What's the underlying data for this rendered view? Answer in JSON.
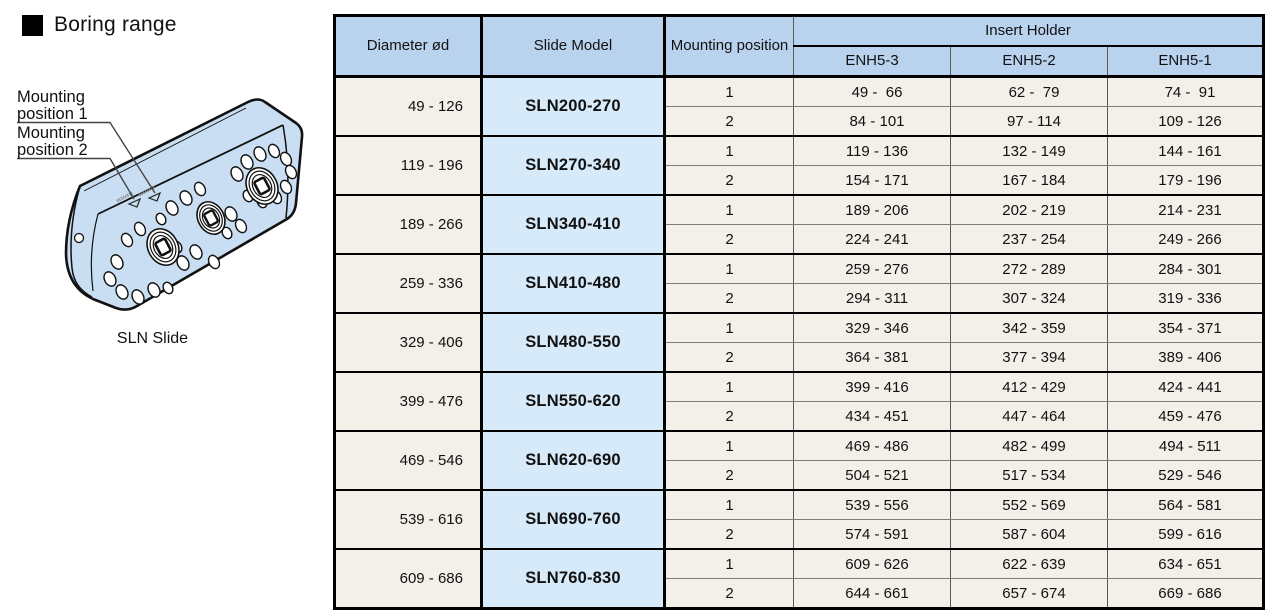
{
  "section": {
    "title": "Boring range"
  },
  "diagram": {
    "callout1": {
      "line1": "Mounting",
      "line2": "position 1"
    },
    "callout2": {
      "line1": "Mounting",
      "line2": "position 2"
    },
    "caption": "SLN Slide"
  },
  "table": {
    "columns": {
      "diameter": "Diameter ød",
      "model": "Slide Model",
      "mounting": "Mounting position",
      "insert_holder": "Insert Holder",
      "holders": [
        "ENH5-3",
        "ENH5-2",
        "ENH5-1"
      ]
    },
    "groups": [
      {
        "diameter": "49 - 126",
        "model": "SLN200-270",
        "rows": [
          {
            "position": "1",
            "values": [
              "49 -  66",
              "62 -  79",
              "74 -  91"
            ]
          },
          {
            "position": "2",
            "values": [
              "84 - 101",
              "97 - 114",
              "109 - 126"
            ]
          }
        ]
      },
      {
        "diameter": "119 - 196",
        "model": "SLN270-340",
        "rows": [
          {
            "position": "1",
            "values": [
              "119 - 136",
              "132 - 149",
              "144 - 161"
            ]
          },
          {
            "position": "2",
            "values": [
              "154 - 171",
              "167 - 184",
              "179 - 196"
            ]
          }
        ]
      },
      {
        "diameter": "189 - 266",
        "model": "SLN340-410",
        "rows": [
          {
            "position": "1",
            "values": [
              "189 - 206",
              "202 - 219",
              "214 - 231"
            ]
          },
          {
            "position": "2",
            "values": [
              "224 - 241",
              "237 - 254",
              "249 - 266"
            ]
          }
        ]
      },
      {
        "diameter": "259 - 336",
        "model": "SLN410-480",
        "rows": [
          {
            "position": "1",
            "values": [
              "259 - 276",
              "272 - 289",
              "284 - 301"
            ]
          },
          {
            "position": "2",
            "values": [
              "294 - 311",
              "307 - 324",
              "319 - 336"
            ]
          }
        ]
      },
      {
        "diameter": "329 - 406",
        "model": "SLN480-550",
        "rows": [
          {
            "position": "1",
            "values": [
              "329 - 346",
              "342 - 359",
              "354 - 371"
            ]
          },
          {
            "position": "2",
            "values": [
              "364 - 381",
              "377 - 394",
              "389 - 406"
            ]
          }
        ]
      },
      {
        "diameter": "399 - 476",
        "model": "SLN550-620",
        "rows": [
          {
            "position": "1",
            "values": [
              "399 - 416",
              "412 - 429",
              "424 - 441"
            ]
          },
          {
            "position": "2",
            "values": [
              "434 - 451",
              "447 - 464",
              "459 - 476"
            ]
          }
        ]
      },
      {
        "diameter": "469 - 546",
        "model": "SLN620-690",
        "rows": [
          {
            "position": "1",
            "values": [
              "469 - 486",
              "482 - 499",
              "494 - 511"
            ]
          },
          {
            "position": "2",
            "values": [
              "504 - 521",
              "517 - 534",
              "529 - 546"
            ]
          }
        ]
      },
      {
        "diameter": "539 - 616",
        "model": "SLN690-760",
        "rows": [
          {
            "position": "1",
            "values": [
              "539 - 556",
              "552 - 569",
              "564 - 581"
            ]
          },
          {
            "position": "2",
            "values": [
              "574 - 591",
              "587 - 604",
              "599 - 616"
            ]
          }
        ]
      },
      {
        "diameter": "609 - 686",
        "model": "SLN760-830",
        "rows": [
          {
            "position": "1",
            "values": [
              "609 - 626",
              "622 - 639",
              "634 - 651"
            ]
          },
          {
            "position": "2",
            "values": [
              "644 - 661",
              "657 - 674",
              "669 - 686"
            ]
          }
        ]
      }
    ]
  },
  "colors": {
    "header_blue": "#b9d3ee",
    "model_blue": "#d7eaf9",
    "row_cream": "#f2f0e9",
    "diagram_fill": "#c9def2",
    "line_black": "#000000"
  }
}
